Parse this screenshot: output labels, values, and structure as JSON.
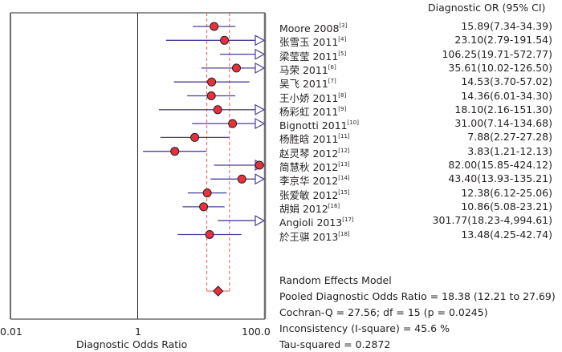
{
  "chart_data": {
    "type": "forest",
    "title": "",
    "xlabel": "Diagnostic Odds Ratio",
    "xscale": "log",
    "xlim": [
      0.01,
      100.0
    ],
    "x_ticks": [
      "0.01",
      "1",
      "100.0"
    ],
    "reference_line": 1,
    "column_header": "Diagnostic OR (95% CI)",
    "studies": [
      {
        "name": "Moore 2008",
        "ref": "[3]",
        "or": 15.89,
        "lower": 7.34,
        "upper": 34.39,
        "label": "15.89(7.34-34.39)"
      },
      {
        "name": "张雪玉 2011",
        "ref": "[4]",
        "or": 23.1,
        "lower": 2.79,
        "upper": 191.54,
        "label": "23.10(2.79-191.54)"
      },
      {
        "name": "梁莹莹 2011",
        "ref": "[5]",
        "or": 106.25,
        "lower": 19.71,
        "upper": 572.77,
        "label": "106.25(19.71-572.77)"
      },
      {
        "name": "马荣 2011",
        "ref": "[6]",
        "or": 35.61,
        "lower": 10.02,
        "upper": 126.5,
        "label": "35.61(10.02-126.50)"
      },
      {
        "name": "吴飞 2011",
        "ref": "[7]",
        "or": 14.53,
        "lower": 3.7,
        "upper": 57.02,
        "label": "14.53(3.70-57.02)"
      },
      {
        "name": "王小娇 2011",
        "ref": "[8]",
        "or": 14.36,
        "lower": 6.01,
        "upper": 34.3,
        "label": "14.36(6.01-34.30)"
      },
      {
        "name": "杨彩虹 2011",
        "ref": "[9]",
        "or": 18.1,
        "lower": 2.16,
        "upper": 151.3,
        "label": "18.10(2.16-151.30)"
      },
      {
        "name": "Bignotti 2011",
        "ref": "[10]",
        "or": 31.0,
        "lower": 7.14,
        "upper": 134.68,
        "label": "31.00(7.14-134.68)"
      },
      {
        "name": "杨胜晗 2011",
        "ref": "[11]",
        "or": 7.88,
        "lower": 2.27,
        "upper": 27.28,
        "label": "7.88(2.27-27.28)"
      },
      {
        "name": "赵灵琴 2012",
        "ref": "[12]",
        "or": 3.83,
        "lower": 1.21,
        "upper": 12.13,
        "label": "3.83(1.21-12.13)"
      },
      {
        "name": "简慧秋 2012",
        "ref": "[13]",
        "or": 82.0,
        "lower": 15.85,
        "upper": 424.12,
        "label": "82.00(15.85-424.12)"
      },
      {
        "name": "李京华 2012",
        "ref": "[14]",
        "or": 43.4,
        "lower": 13.93,
        "upper": 135.21,
        "label": "43.40(13.93-135.21)"
      },
      {
        "name": "张爱敏 2012",
        "ref": "[15]",
        "or": 12.38,
        "lower": 6.12,
        "upper": 25.06,
        "label": "12.38(6.12-25.06)"
      },
      {
        "name": "胡娟 2012",
        "ref": "[16]",
        "or": 10.86,
        "lower": 5.08,
        "upper": 23.21,
        "label": "10.86(5.08-23.21)"
      },
      {
        "name": "Angioli 2013",
        "ref": "[17]",
        "or": 301.77,
        "lower": 18.23,
        "upper": 4994.61,
        "label": "301.77(18.23-4,994.61)"
      },
      {
        "name": "於王骐 2013",
        "ref": "[18]",
        "or": 13.48,
        "lower": 4.25,
        "upper": 42.74,
        "label": "13.48(4.25-42.74)"
      }
    ],
    "pooled": {
      "or": 18.38,
      "lower": 12.21,
      "upper": 27.69
    },
    "summary_lines": [
      "Random Effects Model",
      "Pooled Diagnostic Odds Ratio = 18.38 (12.21 to 27.69)",
      "Cochran-Q = 27.56; df = 15 (p = 0.0245)",
      "Inconsistency (I-square) = 45.6 %",
      "Tau-squared = 0.2872"
    ],
    "colors": {
      "point": "#e8313a",
      "ci_line": "#4b3f99",
      "pooled_ci": "#ee5a4f",
      "axis": "#6d6e71"
    }
  }
}
